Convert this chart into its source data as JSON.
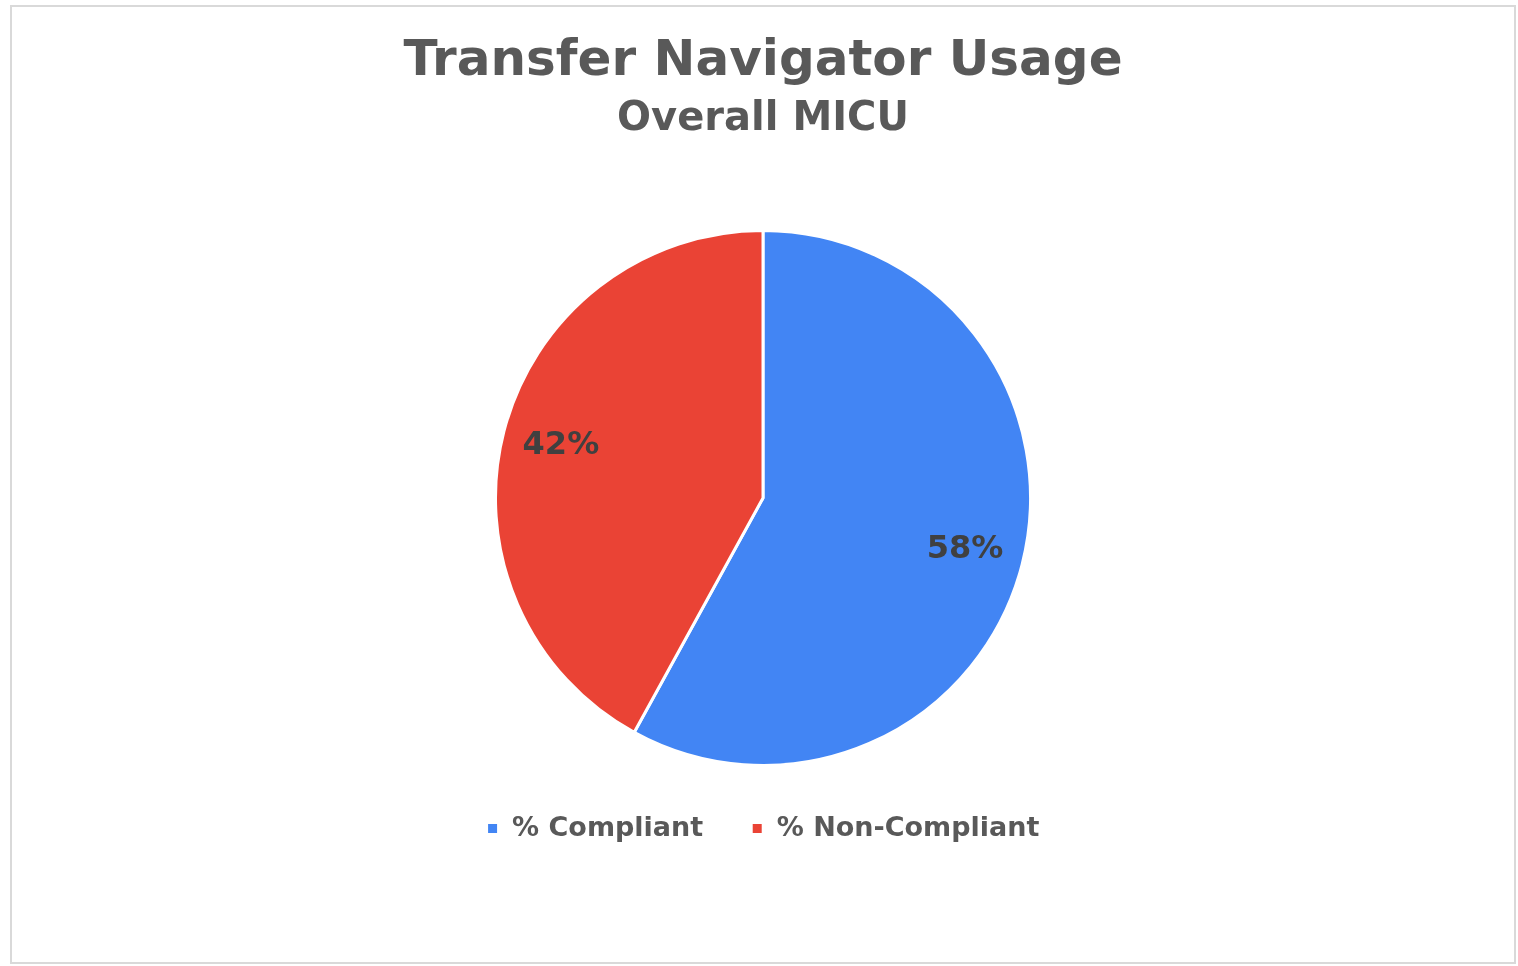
{
  "chart_data": {
    "type": "pie",
    "title": "Transfer Navigator Usage",
    "subtitle": "Overall MICU",
    "categories": [
      "% Compliant",
      "% Non-Compliant"
    ],
    "values": [
      58,
      42
    ],
    "colors": [
      "#4285f4",
      "#ea4335"
    ],
    "value_labels": [
      "58%",
      "42%"
    ],
    "legend": "bottom"
  }
}
